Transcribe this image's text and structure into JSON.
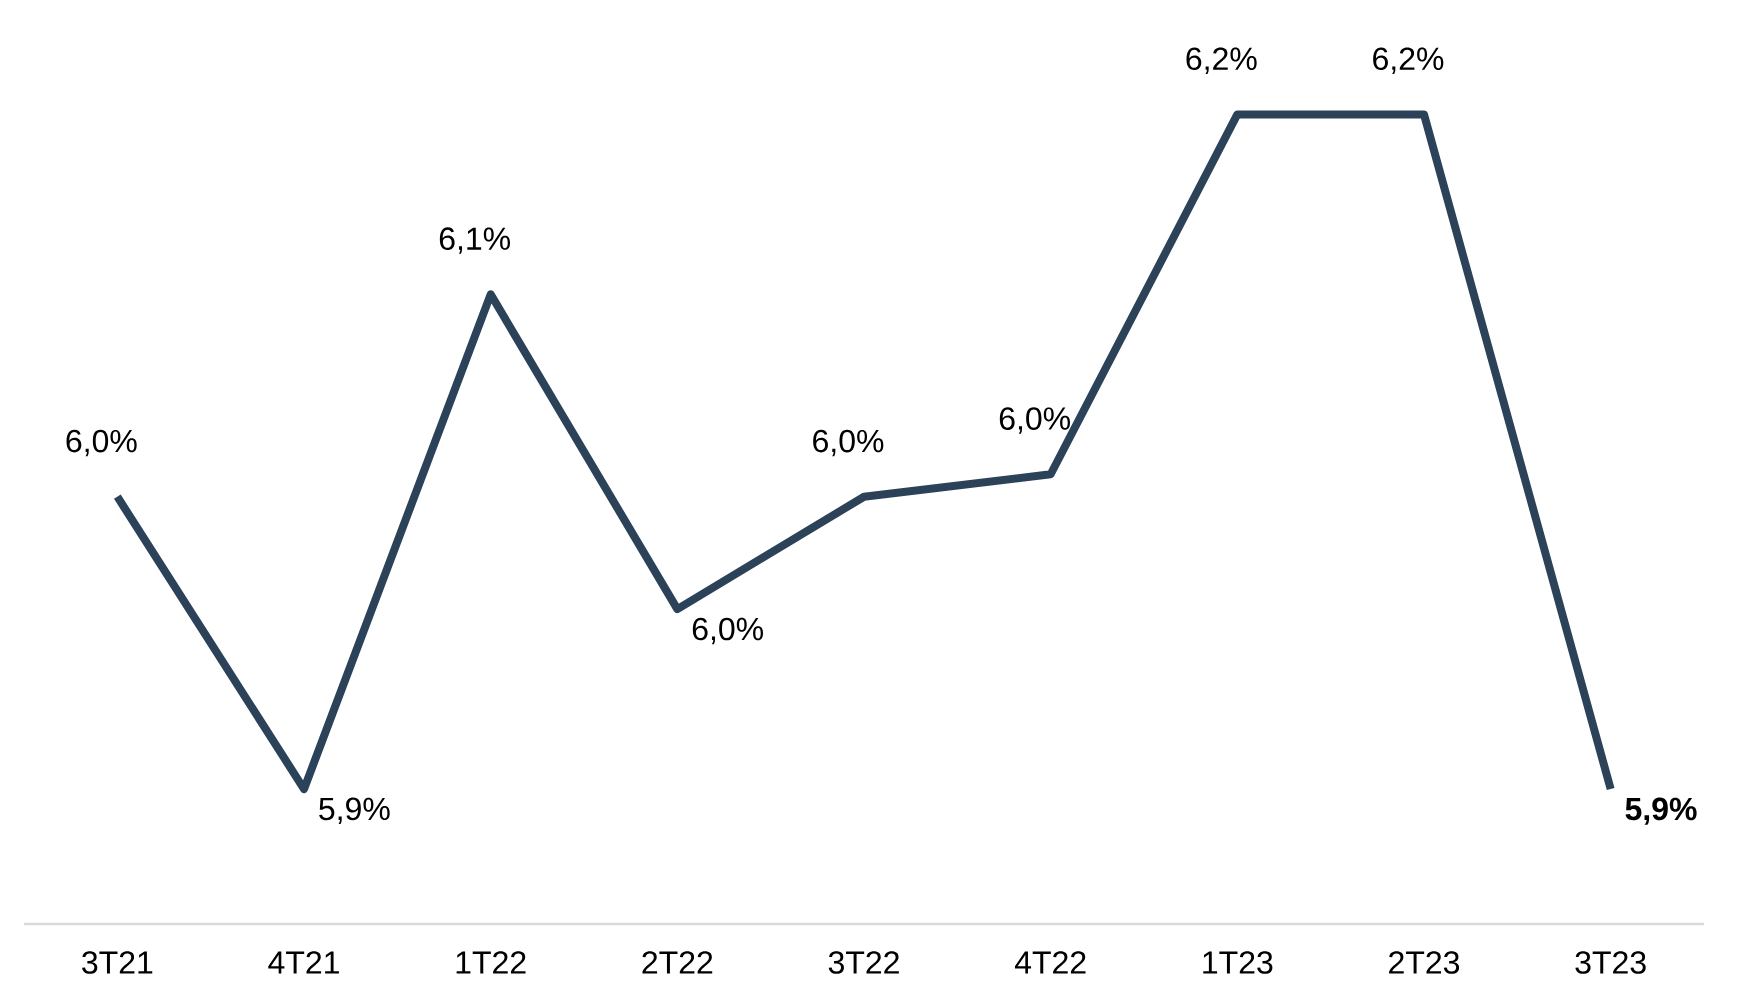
{
  "chart_data": {
    "type": "line",
    "categories": [
      "3T21",
      "4T21",
      "1T22",
      "2T22",
      "3T22",
      "4T22",
      "1T23",
      "2T23",
      "3T23"
    ],
    "values": [
      6.03,
      5.9,
      6.12,
      5.98,
      6.03,
      6.04,
      6.2,
      6.2,
      5.9
    ],
    "value_labels": [
      "6,0%",
      "5,9%",
      "6,1%",
      "6,0%",
      "6,0%",
      "6,0%",
      "6,2%",
      "6,2%",
      "**5,9%**"
    ],
    "color": "#2b4259",
    "tick_labels": "x"
  }
}
